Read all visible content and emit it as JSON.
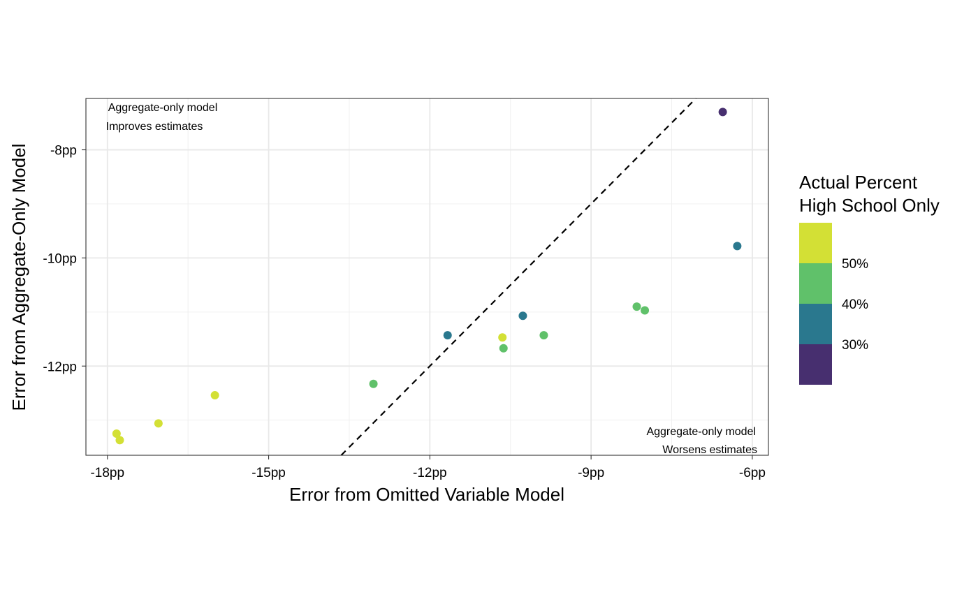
{
  "chart_data": {
    "type": "scatter",
    "title": "",
    "xlabel": "Error from Omitted Variable Model",
    "ylabel": "Error from Aggregate-Only Model",
    "xlim": [
      -18.4,
      -5.7
    ],
    "ylim": [
      -13.65,
      -7.05
    ],
    "x_ticks": [
      {
        "value": -18,
        "label": "-18pp"
      },
      {
        "value": -15,
        "label": "-15pp"
      },
      {
        "value": -12,
        "label": "-12pp"
      },
      {
        "value": -9,
        "label": "-9pp"
      },
      {
        "value": -6,
        "label": "-6pp"
      }
    ],
    "x_minor_ticks": [
      -16.5,
      -13.5,
      -10.5,
      -7.5
    ],
    "y_ticks": [
      {
        "value": -8,
        "label": "-8pp"
      },
      {
        "value": -10,
        "label": "-10pp"
      },
      {
        "value": -12,
        "label": "-12pp"
      }
    ],
    "y_minor_ticks": [
      -9,
      -11,
      -13
    ],
    "grid": true,
    "reference_line": {
      "type": "identity",
      "style": "dashed",
      "color": "#000000"
    },
    "annotations": [
      {
        "lines": [
          "Aggregate-only model",
          "Improves estimates"
        ],
        "position": "top-left"
      },
      {
        "lines": [
          "Aggregate-only model",
          "Worsens estimates"
        ],
        "position": "bottom-right"
      }
    ],
    "points": [
      {
        "x": -6.55,
        "y": -7.3,
        "pct": 0.24
      },
      {
        "x": -6.28,
        "y": -9.78,
        "pct": 0.33
      },
      {
        "x": -8.15,
        "y": -10.9,
        "pct": 0.43
      },
      {
        "x": -8.0,
        "y": -10.97,
        "pct": 0.43
      },
      {
        "x": -10.27,
        "y": -11.07,
        "pct": 0.33
      },
      {
        "x": -9.88,
        "y": -11.43,
        "pct": 0.43
      },
      {
        "x": -10.65,
        "y": -11.47,
        "pct": 0.54
      },
      {
        "x": -10.63,
        "y": -11.67,
        "pct": 0.43
      },
      {
        "x": -11.67,
        "y": -11.43,
        "pct": 0.33
      },
      {
        "x": -13.05,
        "y": -12.33,
        "pct": 0.43
      },
      {
        "x": -16.0,
        "y": -12.54,
        "pct": 0.54
      },
      {
        "x": -17.05,
        "y": -13.06,
        "pct": 0.54
      },
      {
        "x": -17.83,
        "y": -13.25,
        "pct": 0.54
      },
      {
        "x": -17.77,
        "y": -13.37,
        "pct": 0.54
      }
    ],
    "legend": {
      "title_lines": [
        "Actual Percent",
        "High School Only"
      ],
      "placement": "right",
      "type": "binned-colorbar",
      "bins": [
        {
          "from": 0.5,
          "to": 0.6,
          "color": "#D3E035"
        },
        {
          "from": 0.4,
          "to": 0.5,
          "color": "#60C16A"
        },
        {
          "from": 0.3,
          "to": 0.4,
          "color": "#2A788E"
        },
        {
          "from": 0.2,
          "to": 0.3,
          "color": "#472F6F"
        }
      ],
      "labels": [
        {
          "value": 0.5,
          "label": "50%"
        },
        {
          "value": 0.4,
          "label": "40%"
        },
        {
          "value": 0.3,
          "label": "30%"
        }
      ]
    }
  }
}
